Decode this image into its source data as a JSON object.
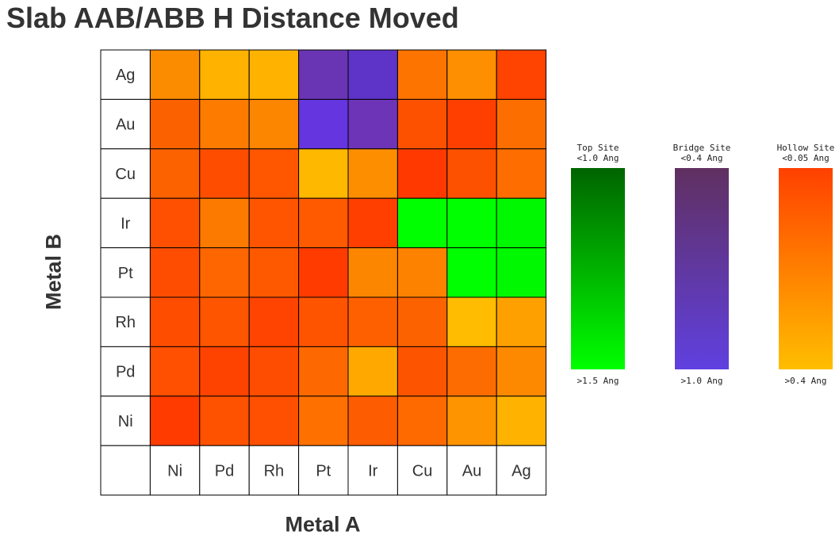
{
  "chart_data": {
    "type": "heatmap",
    "title": "Slab AAB/ABB H Distance Moved",
    "xlabel": "Metal A",
    "ylabel": "Metal B",
    "x_categories": [
      "Ni",
      "Pd",
      "Rh",
      "Pt",
      "Ir",
      "Cu",
      "Au",
      "Ag"
    ],
    "y_categories": [
      "Ag",
      "Au",
      "Cu",
      "Ir",
      "Pt",
      "Rh",
      "Pd",
      "Ni"
    ],
    "cell_colors": [
      [
        "#fb8c00",
        "#ffb300",
        "#ffb300",
        "#6a35b5",
        "#5e33c8",
        "#fd7400",
        "#fd8f00",
        "#ff4300"
      ],
      [
        "#fc6100",
        "#fd7c00",
        "#fd8600",
        "#6535e0",
        "#6e34b8",
        "#fd5100",
        "#ff3f00",
        "#fc6e00"
      ],
      [
        "#fc6200",
        "#ff4d00",
        "#ff5600",
        "#ffb800",
        "#fd8e00",
        "#ff3900",
        "#fe5100",
        "#fd6d00"
      ],
      [
        "#fe5000",
        "#fd7a00",
        "#ff5500",
        "#ff5a00",
        "#ff3f00",
        "#00ff00",
        "#00ff00",
        "#00f800"
      ],
      [
        "#fe4d00",
        "#fd6600",
        "#ff5900",
        "#ff3b00",
        "#fd8600",
        "#fd8200",
        "#00ff00",
        "#00f800"
      ],
      [
        "#ff4d00",
        "#fe5600",
        "#ff4300",
        "#fe5400",
        "#fe6000",
        "#fd6200",
        "#ffbc00",
        "#fea000"
      ],
      [
        "#ff4f00",
        "#fe4200",
        "#fe4c00",
        "#fd6900",
        "#ffa900",
        "#fd5400",
        "#fd6c00",
        "#fd8900"
      ],
      [
        "#ff3b00",
        "#fe5200",
        "#fe5000",
        "#fe7100",
        "#fe5c00",
        "#fe6900",
        "#fe9400",
        "#ffb300"
      ]
    ]
  },
  "legend": {
    "top_site": {
      "title_line1": "Top Site",
      "title_line2": "<1.0 Ang",
      "bottom": ">1.5 Ang",
      "color_top": "#006400",
      "color_bottom": "#00ff00"
    },
    "bridge_site": {
      "title_line1": "Bridge Site",
      "title_line2": "<0.4 Ang",
      "bottom": ">1.0 Ang",
      "color_top": "#603060",
      "color_bottom": "#6040e0"
    },
    "hollow_site": {
      "title_line1": "Hollow Site",
      "title_line2": "<0.05 Ang",
      "bottom": ">0.4 Ang",
      "color_top": "#ff4000",
      "color_bottom": "#ffbe00"
    }
  }
}
